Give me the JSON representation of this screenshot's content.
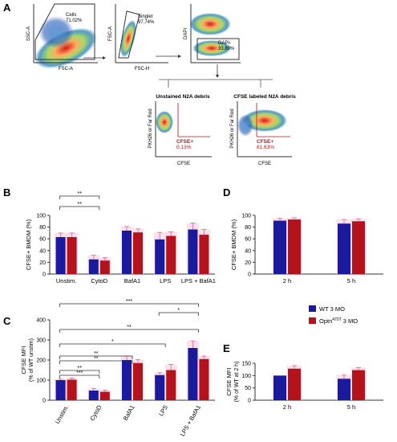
{
  "colors": {
    "wt": "#1a1a9e",
    "optn": "#b5121b",
    "err_wt": "#e87aa6",
    "err_optn": "#e87aa6",
    "axis": "#333333",
    "sig": "#333333"
  },
  "panels": {
    "A": "A",
    "B": "B",
    "C": "C",
    "D": "D",
    "E": "E"
  },
  "flow": {
    "plot1": {
      "ylabel": "SSC-A",
      "xlabel": "FSC-A",
      "gate_name": "Cells",
      "gate_value": "71.02%"
    },
    "plot2": {
      "ylabel": "FSC-A",
      "xlabel": "FSC-H",
      "gate_name": "Singlet",
      "gate_value": "97.74%"
    },
    "plot3": {
      "ylabel": "DAPI",
      "gate_name": "DAPI-",
      "gate_value": "33.89%"
    },
    "plot4": {
      "title": "Unstained N2A debris",
      "ylabel": "PKH26 or Far Red",
      "xlabel": "CFSE",
      "gate_name": "CFSE+",
      "gate_value": "0.13%"
    },
    "plot5": {
      "title": "CFSE labeled N2A debris",
      "ylabel": "PKH26 or Far Red",
      "xlabel": "CFSE",
      "gate_name": "CFSE+",
      "gate_value": "61.63%"
    }
  },
  "legend": {
    "wt": "WT 3 MO",
    "optn_prefix": "Optn",
    "optn_sup": "470T",
    "optn_suffix": " 3 MO"
  },
  "chart_data": [
    {
      "panel": "B",
      "type": "bar",
      "categories": [
        "Unstim.",
        "CytoD",
        "BafA1",
        "LPS",
        "LPS + BafA1"
      ],
      "ylabel": "CFSE+ BMDM (%)",
      "ylim": [
        0,
        100
      ],
      "yticks": [
        "0",
        "20",
        "40",
        "60",
        "80",
        "100"
      ],
      "series": [
        {
          "values": [
            63,
            25,
            74,
            59,
            76
          ],
          "errors": [
            7,
            7,
            7,
            12,
            11
          ]
        },
        {
          "values": [
            63,
            23,
            71,
            65,
            67
          ],
          "errors": [
            7,
            5,
            6,
            7,
            9
          ]
        }
      ],
      "brackets": [
        {
          "from": 0,
          "to": 1,
          "label": "**"
        },
        {
          "from": 0,
          "to": 1,
          "label": "**"
        }
      ]
    },
    {
      "panel": "D",
      "type": "bar",
      "categories": [
        "2 h",
        "5 h"
      ],
      "ylabel": "CFSE+ BMDM (%)",
      "ylim": [
        0,
        100
      ],
      "yticks": [
        "0",
        "20",
        "40",
        "60",
        "80",
        "100"
      ],
      "series": [
        {
          "values": [
            91,
            86
          ],
          "errors": [
            4,
            7
          ]
        },
        {
          "values": [
            93,
            90
          ],
          "errors": [
            3,
            4
          ]
        }
      ]
    },
    {
      "panel": "C",
      "type": "bar",
      "categories": [
        "Unstim.",
        "CytoD",
        "BafA1",
        "LPS",
        "LPS + BafA1"
      ],
      "ylabel": "CFSE MFI",
      "ylabel2": "(% of WT unstim)",
      "ylim": [
        0,
        400
      ],
      "yticks": [
        "0",
        "100",
        "200",
        "300",
        "400"
      ],
      "series": [
        {
          "values": [
            100,
            48,
            200,
            125,
            260
          ],
          "errors": [
            5,
            10,
            20,
            12,
            35
          ]
        },
        {
          "values": [
            102,
            42,
            185,
            150,
            205
          ],
          "errors": [
            8,
            8,
            17,
            28,
            15
          ]
        }
      ],
      "brackets": [
        {
          "from": 0,
          "to": 1,
          "label": "**"
        },
        {
          "from": 0,
          "to": 1,
          "label": "***"
        },
        {
          "from": 0,
          "to": 2,
          "label": "**"
        },
        {
          "from": 0,
          "to": 2,
          "label": "**"
        },
        {
          "from": 0,
          "to": 3,
          "label": "*"
        },
        {
          "from": 0,
          "to": 4,
          "label": "**"
        },
        {
          "from": 0,
          "to": 4,
          "label": "***"
        },
        {
          "from": 3,
          "to": 4,
          "label": "*"
        }
      ]
    },
    {
      "panel": "E",
      "type": "bar",
      "categories": [
        "2 h",
        "5 h"
      ],
      "ylabel": "CFSE MFI",
      "ylabel2": "(% of WT at 2 h)",
      "ylim": [
        0,
        150
      ],
      "yticks": [
        "0",
        "50",
        "100",
        "150"
      ],
      "series": [
        {
          "values": [
            100,
            87
          ],
          "errors": [
            0,
            15
          ]
        },
        {
          "values": [
            128,
            122
          ],
          "errors": [
            12,
            10
          ]
        }
      ]
    }
  ]
}
